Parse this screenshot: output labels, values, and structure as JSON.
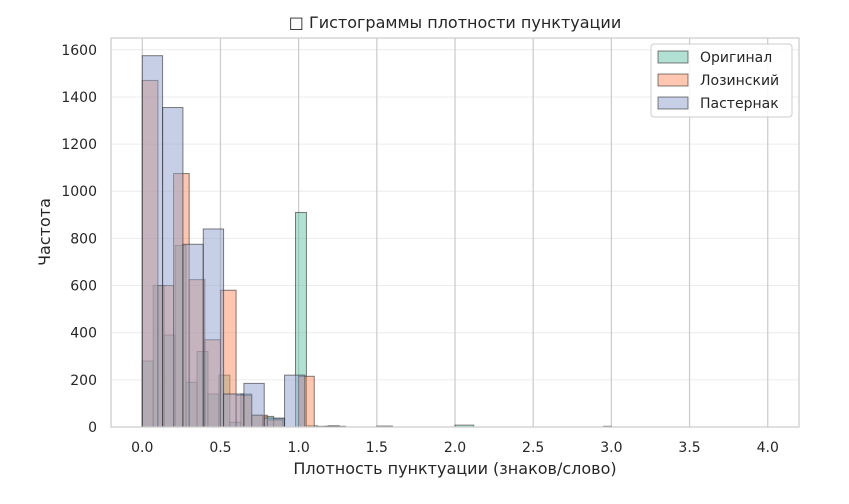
{
  "chart_data": {
    "type": "bar",
    "title": "□ Гистограммы плотности пунктуации",
    "xlabel": "Плотность пунктуации (знаков/слово)",
    "ylabel": "Частота",
    "xlim": [
      -0.2,
      4.2
    ],
    "ylim": [
      0,
      1650
    ],
    "xticks": [
      0.0,
      0.5,
      1.0,
      1.5,
      2.0,
      2.5,
      3.0,
      3.5,
      4.0
    ],
    "xtick_labels": [
      "0.0",
      "0.5",
      "1.0",
      "1.5",
      "2.0",
      "2.5",
      "3.0",
      "3.5",
      "4.0"
    ],
    "yticks": [
      0,
      200,
      400,
      600,
      800,
      1000,
      1200,
      1400,
      1600
    ],
    "ytick_labels": [
      "0",
      "200",
      "400",
      "600",
      "800",
      "1000",
      "1200",
      "1400",
      "1600"
    ],
    "grid": true,
    "legend_position": "top-right",
    "series": [
      {
        "name": "Оригинал",
        "color": "#66c2a5",
        "bins": [
          [
            0.0,
            0.07,
            280
          ],
          [
            0.07,
            0.14,
            600
          ],
          [
            0.14,
            0.21,
            390
          ],
          [
            0.21,
            0.28,
            770
          ],
          [
            0.28,
            0.35,
            190
          ],
          [
            0.35,
            0.42,
            320
          ],
          [
            0.42,
            0.49,
            140
          ],
          [
            0.49,
            0.56,
            220
          ],
          [
            0.56,
            0.63,
            20
          ],
          [
            0.63,
            0.7,
            140
          ],
          [
            0.7,
            0.77,
            50
          ],
          [
            0.77,
            0.84,
            45
          ],
          [
            0.84,
            0.91,
            35
          ],
          [
            0.91,
            0.98,
            0
          ],
          [
            0.98,
            1.05,
            910
          ],
          [
            1.05,
            1.12,
            5
          ],
          [
            1.12,
            1.19,
            3
          ],
          [
            1.19,
            1.26,
            5
          ],
          [
            1.5,
            1.6,
            4
          ],
          [
            2.0,
            2.12,
            8
          ],
          [
            2.95,
            3.0,
            3
          ]
        ]
      },
      {
        "name": "Лозинский",
        "color": "#fc8d62",
        "bins": [
          [
            0.0,
            0.1,
            1470
          ],
          [
            0.1,
            0.2,
            600
          ],
          [
            0.2,
            0.3,
            1075
          ],
          [
            0.3,
            0.4,
            625
          ],
          [
            0.4,
            0.5,
            370
          ],
          [
            0.5,
            0.6,
            580
          ],
          [
            0.6,
            0.7,
            135
          ],
          [
            0.7,
            0.8,
            50
          ],
          [
            0.8,
            0.9,
            30
          ],
          [
            0.9,
            1.0,
            0
          ],
          [
            1.0,
            1.1,
            215
          ]
        ]
      },
      {
        "name": "Пастернак",
        "color": "#8da0cb",
        "bins": [
          [
            0.0,
            0.13,
            1575
          ],
          [
            0.13,
            0.26,
            1355
          ],
          [
            0.26,
            0.39,
            775
          ],
          [
            0.39,
            0.52,
            840
          ],
          [
            0.52,
            0.65,
            140
          ],
          [
            0.65,
            0.78,
            185
          ],
          [
            0.78,
            0.91,
            38
          ],
          [
            0.91,
            1.04,
            220
          ],
          [
            1.04,
            1.17,
            0
          ],
          [
            1.17,
            1.3,
            3
          ]
        ]
      }
    ]
  }
}
